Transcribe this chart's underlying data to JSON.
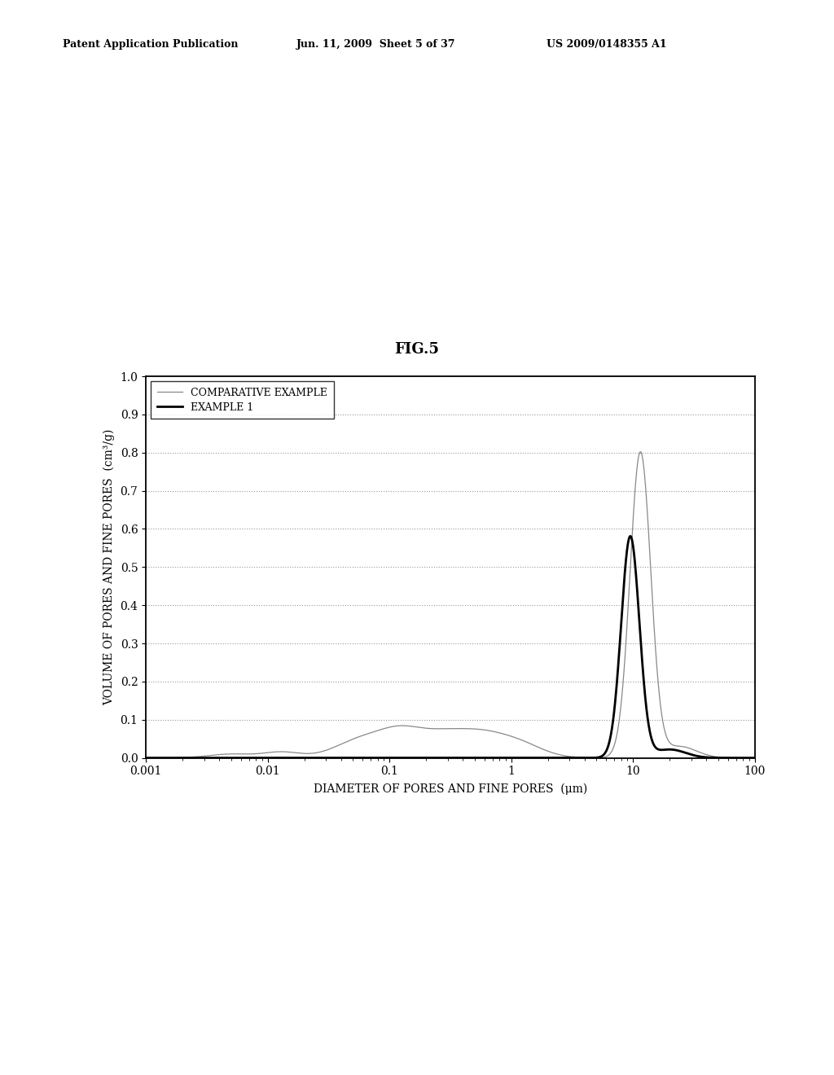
{
  "title": "FIG.5",
  "header_left": "Patent Application Publication",
  "header_mid": "Jun. 11, 2009  Sheet 5 of 37",
  "header_right": "US 2009/0148355 A1",
  "xlabel": "DIAMETER OF PORES AND FINE PORES  (μm)",
  "ylabel": "VOLUME OF PORES AND FINE PORES  (cm³/g)",
  "legend_comparative": "COMPARATIVE EXAMPLE",
  "legend_example": "EXAMPLE 1",
  "ylim": [
    0.0,
    1.0
  ],
  "yticks": [
    0.0,
    0.1,
    0.2,
    0.3,
    0.4,
    0.5,
    0.6,
    0.7,
    0.8,
    0.9,
    1.0
  ],
  "bg_color": "#ffffff",
  "line_color_comparative": "#888888",
  "line_color_example": "#000000",
  "grid_color": "#999999",
  "header_fontsize": 9,
  "title_fontsize": 13,
  "tick_fontsize": 10,
  "axis_label_fontsize": 10,
  "legend_fontsize": 9
}
